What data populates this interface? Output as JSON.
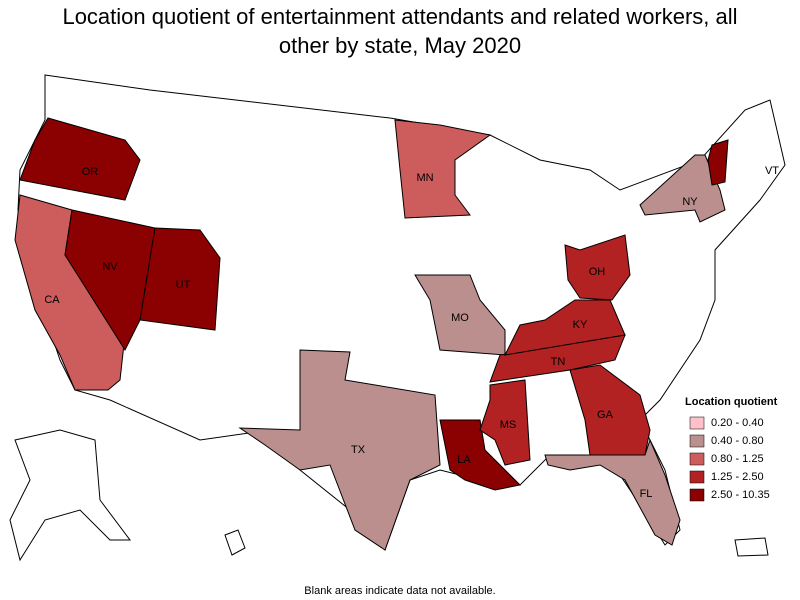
{
  "map": {
    "title": "Location quotient of entertainment attendants and related workers, all other by state, May 2020",
    "legend": {
      "title": "Location quotient",
      "items": [
        {
          "label": "0.20 - 0.40",
          "color": "#ffc0cb"
        },
        {
          "label": "0.40 - 0.80",
          "color": "#bc8f8f"
        },
        {
          "label": "0.80 - 1.25",
          "color": "#cd5c5c"
        },
        {
          "label": "1.25 - 2.50",
          "color": "#b22222"
        },
        {
          "label": "2.50 - 10.35",
          "color": "#8b0000"
        }
      ]
    },
    "states": [
      {
        "label": "OR",
        "color": "#8b0000"
      },
      {
        "label": "CA",
        "color": "#cd5c5c"
      },
      {
        "label": "NV",
        "color": "#8b0000"
      },
      {
        "label": "UT",
        "color": "#8b0000"
      },
      {
        "label": "MN",
        "color": "#cd5c5c"
      },
      {
        "label": "MO",
        "color": "#bc8f8f"
      },
      {
        "label": "TX",
        "color": "#bc8f8f"
      },
      {
        "label": "LA",
        "color": "#8b0000"
      },
      {
        "label": "MS",
        "color": "#b22222"
      },
      {
        "label": "TN",
        "color": "#b22222"
      },
      {
        "label": "KY",
        "color": "#b22222"
      },
      {
        "label": "OH",
        "color": "#b22222"
      },
      {
        "label": "GA",
        "color": "#b22222"
      },
      {
        "label": "FL",
        "color": "#bc8f8f"
      },
      {
        "label": "NY",
        "color": "#bc8f8f"
      },
      {
        "label": "VT",
        "color": "#8b0000"
      }
    ],
    "note": "Blank areas indicate data not available."
  }
}
